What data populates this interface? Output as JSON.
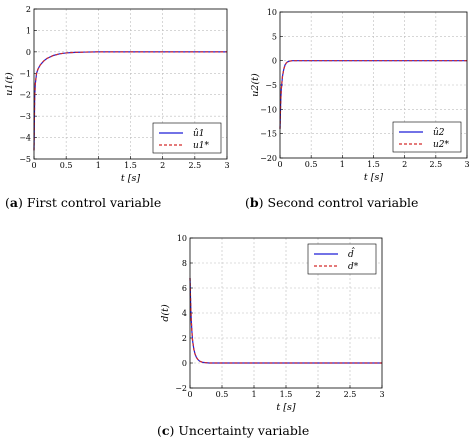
{
  "chart_data": [
    {
      "type": "line",
      "caption_tag": "a",
      "caption_text": "First control variable",
      "xlabel": "t [s]",
      "ylabel": "u1(t)",
      "xlim": [
        0,
        3
      ],
      "ylim": [
        -5,
        2
      ],
      "xticks": [
        "0",
        "0.5",
        "1",
        "1.5",
        "2",
        "2.5",
        "3"
      ],
      "yticks": [
        "−5",
        "−4",
        "−3",
        "−2",
        "−1",
        "0",
        "1",
        "2"
      ],
      "grid": true,
      "legend_position": "bottom-right",
      "series": [
        {
          "name": "û1",
          "color": "#1f1fd6",
          "style": "solid",
          "x": [
            0,
            0.01,
            0.02,
            0.04,
            0.06,
            0.08,
            0.1,
            0.15,
            0.2,
            0.3,
            0.4,
            0.5,
            0.6,
            0.8,
            1.0,
            1.5,
            2.0,
            2.5,
            3.0
          ],
          "y": [
            -4.6,
            -2.2,
            -1.5,
            -1.0,
            -0.82,
            -0.7,
            -0.6,
            -0.43,
            -0.31,
            -0.17,
            -0.09,
            -0.05,
            -0.03,
            -0.01,
            0,
            0,
            0,
            0,
            0
          ]
        },
        {
          "name": "u1*",
          "color": "#d42a2a",
          "style": "dashed",
          "x": [
            0,
            0.01,
            0.02,
            0.04,
            0.06,
            0.08,
            0.1,
            0.15,
            0.2,
            0.3,
            0.4,
            0.5,
            0.6,
            0.8,
            1.0,
            1.5,
            2.0,
            2.5,
            3.0
          ],
          "y": [
            -4.6,
            -2.2,
            -1.5,
            -1.0,
            -0.82,
            -0.7,
            -0.6,
            -0.43,
            -0.31,
            -0.17,
            -0.09,
            -0.05,
            -0.03,
            -0.01,
            0,
            0,
            0,
            0,
            0
          ]
        }
      ]
    },
    {
      "type": "line",
      "caption_tag": "b",
      "caption_text": "Second control variable",
      "xlabel": "t [s]",
      "ylabel": "u2(t)",
      "xlim": [
        0,
        3
      ],
      "ylim": [
        -20,
        10
      ],
      "xticks": [
        "0",
        "0.5",
        "1",
        "1.5",
        "2",
        "2.5",
        "3"
      ],
      "yticks": [
        "−20",
        "−15",
        "−10",
        "−5",
        "0",
        "5",
        "10"
      ],
      "grid": true,
      "legend_position": "bottom-right",
      "series": [
        {
          "name": "û2",
          "color": "#1f1fd6",
          "style": "solid",
          "x": [
            0,
            0.01,
            0.02,
            0.04,
            0.06,
            0.08,
            0.1,
            0.12,
            0.15,
            0.2,
            0.3,
            0.5,
            1.0,
            2.0,
            3.0
          ],
          "y": [
            -14,
            -9,
            -6,
            -3.2,
            -1.8,
            -0.9,
            -0.5,
            -0.25,
            -0.1,
            0,
            0,
            0,
            0,
            0,
            0
          ]
        },
        {
          "name": "u2*",
          "color": "#d42a2a",
          "style": "dashed",
          "x": [
            0,
            0.01,
            0.02,
            0.04,
            0.06,
            0.08,
            0.1,
            0.12,
            0.15,
            0.2,
            0.3,
            0.5,
            1.0,
            2.0,
            3.0
          ],
          "y": [
            -14,
            -9,
            -6,
            -3.2,
            -1.8,
            -0.9,
            -0.5,
            -0.25,
            -0.1,
            0,
            0,
            0,
            0,
            0,
            0
          ]
        }
      ]
    },
    {
      "type": "line",
      "caption_tag": "c",
      "caption_text": "Uncertainty variable",
      "xlabel": "t [s]",
      "ylabel": "d(t)",
      "xlim": [
        0,
        3
      ],
      "ylim": [
        -2,
        10
      ],
      "xticks": [
        "0",
        "0.5",
        "1",
        "1.5",
        "2",
        "2.5",
        "3"
      ],
      "yticks": [
        "−2",
        "0",
        "2",
        "4",
        "6",
        "8",
        "10"
      ],
      "grid": true,
      "legend_position": "top-right",
      "series": [
        {
          "name": "d̂",
          "color": "#1f1fd6",
          "style": "solid",
          "x": [
            0,
            0.01,
            0.02,
            0.03,
            0.04,
            0.06,
            0.08,
            0.1,
            0.12,
            0.15,
            0.2,
            0.3,
            0.5,
            1.0,
            2.0,
            3.0
          ],
          "y": [
            6.8,
            4.8,
            3.4,
            2.5,
            1.8,
            1.1,
            0.7,
            0.45,
            0.3,
            0.15,
            0.05,
            0,
            0,
            0,
            0,
            0
          ]
        },
        {
          "name": "d*",
          "color": "#d42a2a",
          "style": "dashed",
          "x": [
            0,
            0.01,
            0.02,
            0.03,
            0.04,
            0.06,
            0.08,
            0.1,
            0.12,
            0.15,
            0.2,
            0.3,
            0.5,
            1.0,
            2.0,
            3.0
          ],
          "y": [
            6.8,
            4.8,
            3.4,
            2.5,
            1.8,
            1.1,
            0.7,
            0.45,
            0.3,
            0.15,
            0.05,
            0,
            0,
            0,
            0,
            0
          ]
        }
      ]
    }
  ]
}
